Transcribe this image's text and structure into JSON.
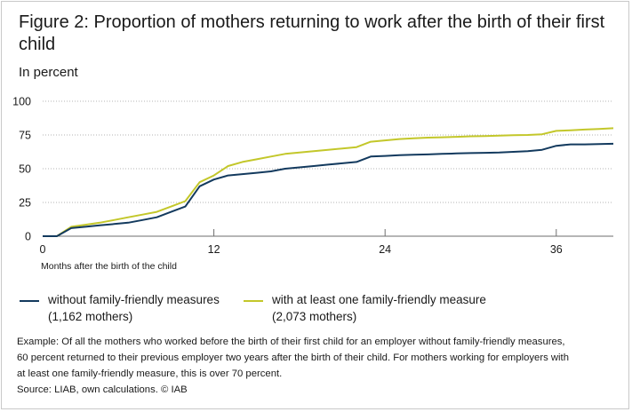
{
  "figure": {
    "title": "Figure 2: Proportion of mothers returning to work after the birth of their first child",
    "subtitle": "In percent"
  },
  "chart_data": {
    "type": "line",
    "title": "Figure 2: Proportion of mothers returning to work after the birth of their first child",
    "subtitle": "In percent",
    "xlabel": "Months after the birth of the child",
    "ylabel": "",
    "xlim": [
      0,
      40
    ],
    "ylim": [
      0,
      100
    ],
    "x_ticks": [
      0,
      12,
      24,
      36
    ],
    "y_ticks": [
      0,
      25,
      50,
      75,
      100
    ],
    "grid": "horizontal dotted",
    "legend_position": "bottom",
    "series": [
      {
        "name": "without family-friendly measures",
        "sublabel": "(1,162 mothers)",
        "color": "#133a5e",
        "x": [
          0,
          1,
          2,
          3,
          4,
          5,
          6,
          7,
          8,
          9,
          10,
          11,
          12,
          13,
          14,
          15,
          16,
          17,
          18,
          19,
          20,
          21,
          22,
          23,
          24,
          25,
          26,
          27,
          28,
          29,
          30,
          31,
          32,
          33,
          34,
          35,
          36,
          37,
          38,
          39,
          40
        ],
        "y": [
          0,
          0,
          6,
          7,
          8,
          9,
          10,
          12,
          14,
          18,
          22,
          37,
          42,
          45,
          46,
          47,
          48,
          50,
          51,
          52,
          53,
          54,
          55,
          59,
          59.5,
          60,
          60.3,
          60.6,
          61,
          61.3,
          61.6,
          61.8,
          62,
          62.5,
          63,
          64,
          67,
          68,
          68,
          68.3,
          68.5
        ]
      },
      {
        "name": "with at least one family-friendly measure",
        "sublabel": "(2,073 mothers)",
        "color": "#c3c72a",
        "x": [
          0,
          1,
          2,
          3,
          4,
          5,
          6,
          7,
          8,
          9,
          10,
          11,
          12,
          13,
          14,
          15,
          16,
          17,
          18,
          19,
          20,
          21,
          22,
          23,
          24,
          25,
          26,
          27,
          28,
          29,
          30,
          31,
          32,
          33,
          34,
          35,
          36,
          37,
          38,
          39,
          40
        ],
        "y": [
          0,
          0,
          7,
          8.5,
          10,
          12,
          14,
          16,
          18,
          22,
          26,
          40,
          45,
          52,
          55,
          57,
          59,
          61,
          62,
          63,
          64,
          65,
          66,
          70,
          71,
          72,
          72.5,
          73,
          73.3,
          73.6,
          74,
          74.2,
          74.5,
          74.8,
          75,
          75.5,
          78,
          78.5,
          79,
          79.5,
          80
        ]
      }
    ]
  },
  "legend": [
    {
      "label": "without family-friendly measures",
      "sublabel": "(1,162 mothers)"
    },
    {
      "label": "with at least one family-friendly measure",
      "sublabel": "(2,073 mothers)"
    }
  ],
  "note": {
    "line1": "Example: Of all the mothers who worked before the birth of their first child for an employer without family-friendly measures,",
    "line2": "60 percent returned to their previous employer two years after the birth of their child. For mothers working for employers with",
    "line3": "at least one family-friendly measure, this is over 70 percent.",
    "source": "Source: LIAB, own calculations. © IAB"
  }
}
